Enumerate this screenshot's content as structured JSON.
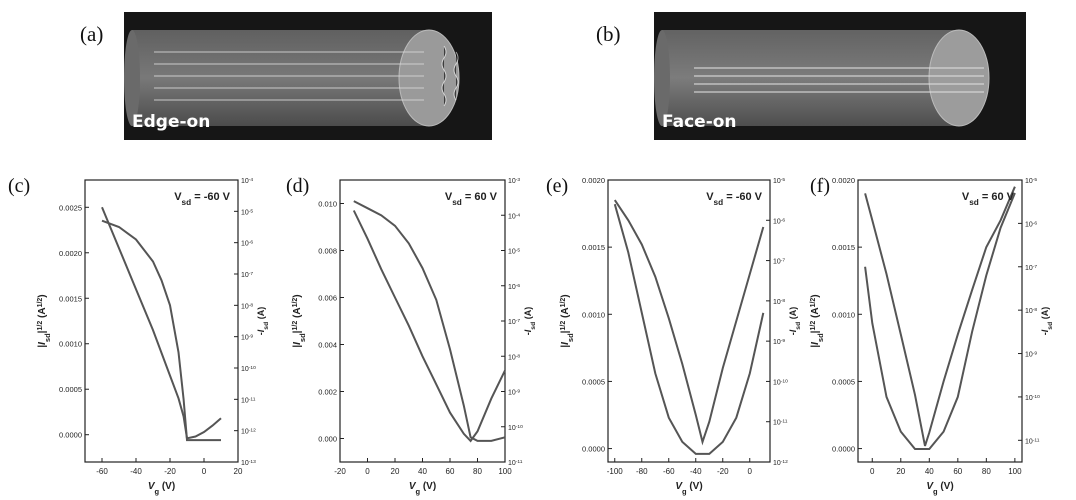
{
  "panels_top": [
    {
      "letter": "(a)",
      "label": "Edge-on"
    },
    {
      "letter": "(b)",
      "label": "Face-on"
    }
  ],
  "chart_data": [
    {
      "letter": "(c)",
      "type": "line",
      "annotation": "V_sd = -60 V",
      "xlabel": "V_g (V)",
      "ylabel": "|I_sd|^1/2 (A^1/2)",
      "ylabel_right": "-I_sd (A)",
      "xlim": [
        -70,
        20
      ],
      "xticks": [
        -60,
        -40,
        -20,
        0,
        20
      ],
      "ylim": [
        -0.0003,
        0.0028
      ],
      "yticks": [
        0.0,
        0.0005,
        0.001,
        0.0015,
        0.002,
        0.0025
      ],
      "ytick_labels": [
        "0.0000",
        "0.0005",
        "0.0010",
        "0.0015",
        "0.0020",
        "0.0025"
      ],
      "yright_log_range": [
        -13,
        -4
      ],
      "series": [
        {
          "axis": "left",
          "x": [
            -60,
            -50,
            -40,
            -30,
            -20,
            -15,
            -12,
            -10,
            -5,
            0,
            5,
            10
          ],
          "y": [
            0.0025,
            0.00205,
            0.0016,
            0.00115,
            0.00065,
            0.0004,
            0.0002,
            -4e-05,
            -2e-05,
            3e-05,
            0.0001,
            0.00018
          ]
        },
        {
          "axis": "right",
          "x": [
            -60,
            -50,
            -40,
            -30,
            -25,
            -20,
            -15,
            -12,
            -10,
            -5,
            0,
            10
          ],
          "y": [
            -5.3,
            -5.5,
            -5.9,
            -6.6,
            -7.2,
            -8.0,
            -9.5,
            -11.0,
            -12.3,
            -12.3,
            -12.3,
            -12.3
          ]
        }
      ]
    },
    {
      "letter": "(d)",
      "type": "line",
      "annotation": "V_sd = 60 V",
      "xlabel": "V_g (V)",
      "ylabel": "|I_sd|^1/2 (A^1/2)",
      "ylabel_right": "-I_sd (A)",
      "xlim": [
        -20,
        100
      ],
      "xticks": [
        -20,
        0,
        20,
        40,
        60,
        80,
        100
      ],
      "ylim": [
        -0.001,
        0.011
      ],
      "yticks": [
        0.0,
        0.002,
        0.004,
        0.006,
        0.008,
        0.01
      ],
      "ytick_labels": [
        "0.000",
        "0.002",
        "0.004",
        "0.006",
        "0.008",
        "0.010"
      ],
      "yright_log_range": [
        -11,
        -3
      ],
      "series": [
        {
          "axis": "left",
          "x": [
            -10,
            0,
            10,
            20,
            30,
            40,
            50,
            60,
            70,
            75,
            80,
            90,
            100
          ],
          "y": [
            0.0097,
            0.0085,
            0.0072,
            0.006,
            0.0048,
            0.0035,
            0.0023,
            0.0011,
            0.0002,
            -0.0001,
            0.0003,
            0.0017,
            0.0029
          ]
        },
        {
          "axis": "right",
          "x": [
            -10,
            0,
            10,
            20,
            30,
            40,
            50,
            60,
            70,
            75,
            80,
            90,
            100
          ],
          "y": [
            -3.6,
            -3.8,
            -4.0,
            -4.3,
            -4.8,
            -5.5,
            -6.4,
            -7.8,
            -9.4,
            -10.3,
            -10.4,
            -10.4,
            -10.3
          ]
        }
      ]
    },
    {
      "letter": "(e)",
      "type": "line",
      "annotation": "V_sd = -60 V",
      "xlabel": "V_g (V)",
      "ylabel": "|I_sd|^1/2 (A^1/2)",
      "ylabel_right": "-I_sd (A)",
      "xlim": [
        -105,
        15
      ],
      "xticks": [
        -100,
        -80,
        -60,
        -40,
        -20,
        0
      ],
      "ylim": [
        -0.0001,
        0.002
      ],
      "yticks": [
        0.0,
        0.0005,
        0.001,
        0.0015,
        0.002
      ],
      "ytick_labels": [
        "0.0000",
        "0.0005",
        "0.0010",
        "0.0015",
        "0.0020"
      ],
      "yright_log_range": [
        -12,
        -5
      ],
      "series": [
        {
          "axis": "left",
          "x": [
            -100,
            -90,
            -80,
            -70,
            -60,
            -50,
            -40,
            -35,
            -30,
            -20,
            -10,
            0,
            10
          ],
          "y": [
            0.00185,
            0.0017,
            0.00152,
            0.00128,
            0.00097,
            0.00063,
            0.00025,
            5e-05,
            0.0002,
            0.0006,
            0.00095,
            0.0013,
            0.00165
          ]
        },
        {
          "axis": "right",
          "x": [
            -100,
            -90,
            -80,
            -70,
            -60,
            -50,
            -40,
            -30,
            -20,
            -10,
            0,
            10
          ],
          "y": [
            -5.6,
            -6.8,
            -8.3,
            -9.8,
            -10.9,
            -11.5,
            -11.8,
            -11.8,
            -11.5,
            -10.9,
            -9.8,
            -8.3
          ]
        }
      ]
    },
    {
      "letter": "(f)",
      "type": "line",
      "annotation": "V_sd = 60 V",
      "xlabel": "V_g (V)",
      "ylabel": "|I_sd|^1/2 (A^1/2)",
      "ylabel_right": "-I_sd (A)",
      "xlim": [
        -10,
        105
      ],
      "xticks": [
        0,
        20,
        40,
        60,
        80,
        100
      ],
      "ylim": [
        -0.0001,
        0.002
      ],
      "yticks": [
        0.0,
        0.0005,
        0.001,
        0.0015,
        0.002
      ],
      "ytick_labels": [
        "0.0000",
        "0.0005",
        "0.0010",
        "0.0015",
        "0.0020"
      ],
      "yright_log_range": [
        -11.5,
        -5
      ],
      "series": [
        {
          "axis": "left",
          "x": [
            -5,
            0,
            10,
            20,
            30,
            37,
            40,
            50,
            60,
            70,
            80,
            90,
            100
          ],
          "y": [
            0.0019,
            0.0017,
            0.0013,
            0.00085,
            0.0004,
            2e-05,
            0.00012,
            0.0005,
            0.00085,
            0.00118,
            0.0015,
            0.0017,
            0.00195
          ]
        },
        {
          "axis": "right",
          "x": [
            -5,
            0,
            10,
            20,
            30,
            40,
            50,
            60,
            70,
            80,
            90,
            100
          ],
          "y": [
            -7.0,
            -8.3,
            -10.0,
            -10.8,
            -11.2,
            -11.2,
            -10.8,
            -10.0,
            -8.5,
            -7.2,
            -6.1,
            -5.3
          ]
        }
      ]
    }
  ]
}
